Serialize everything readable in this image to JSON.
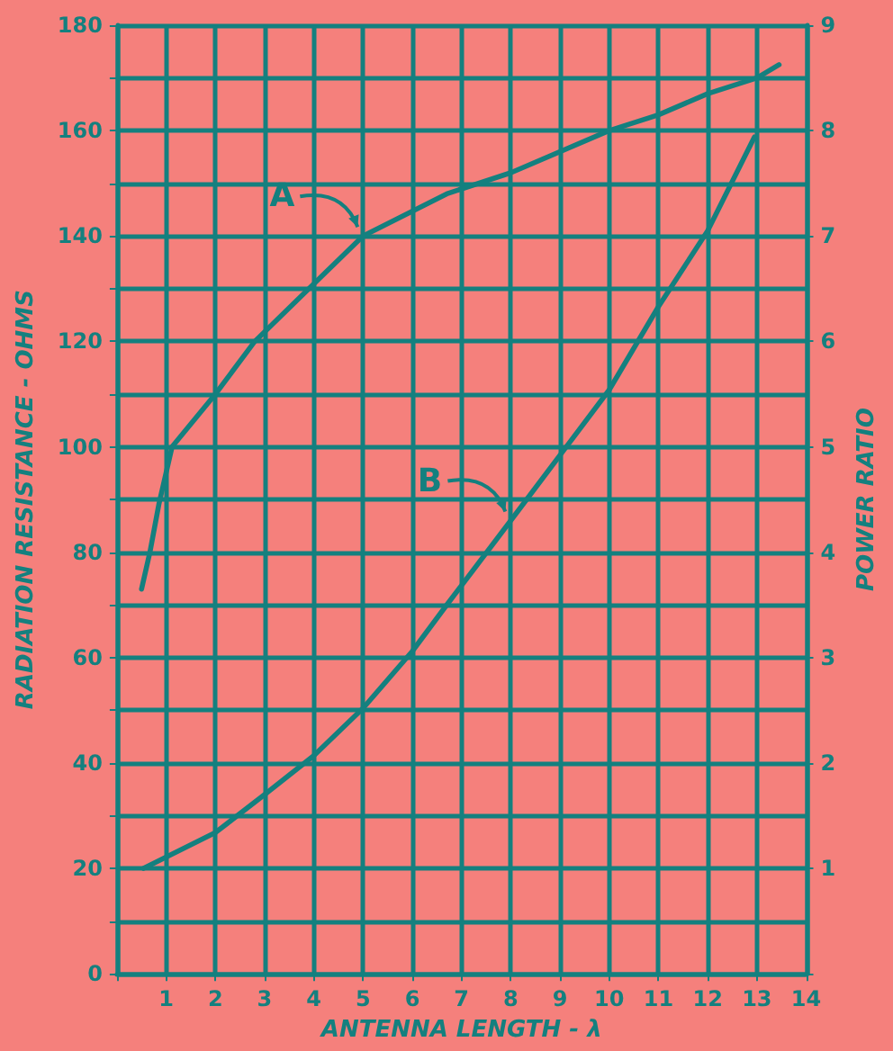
{
  "chart_data": {
    "type": "line",
    "xlabel": "ANTENNA LENGTH - λ",
    "ylabel": "RADIATION RESISTANCE - OHMS",
    "y2label": "POWER RATIO",
    "series": [
      {
        "name": "A",
        "color": "#14807f",
        "x": [
          0.5,
          0.67,
          0.85,
          1.12,
          2,
          2.8,
          3.9,
          5,
          6.7,
          8,
          10,
          11,
          12,
          13,
          13.45
        ],
        "values": [
          73,
          80,
          89,
          100,
          110,
          120,
          130,
          140,
          148,
          152,
          160,
          163,
          167,
          170,
          172.5
        ]
      },
      {
        "name": "B",
        "color": "#14807f",
        "axis": "y2",
        "x": [
          0.54,
          2,
          3,
          4,
          5,
          6,
          6.7,
          8,
          9,
          10,
          11,
          12,
          12.95
        ],
        "values": [
          1.0,
          1.34,
          1.7,
          2.07,
          2.52,
          3.06,
          3.5,
          4.3,
          4.92,
          5.54,
          6.33,
          7.05,
          7.94
        ]
      }
    ],
    "xlim": [
      0,
      14
    ],
    "xticks": [
      {
        "value": 0,
        "label": null
      },
      1,
      2,
      3,
      4,
      5,
      6,
      7,
      8,
      9,
      10,
      11,
      12,
      13,
      14
    ],
    "ylim": [
      0,
      180
    ],
    "yticks": [
      0,
      {
        "value": 10,
        "label": null
      },
      20,
      {
        "value": 30,
        "label": null
      },
      40,
      {
        "value": 50,
        "label": null
      },
      60,
      {
        "value": 70,
        "label": null
      },
      80,
      {
        "value": 90,
        "label": null
      },
      100,
      {
        "value": 110,
        "label": null
      },
      120,
      {
        "value": 130,
        "label": null
      },
      140,
      {
        "value": 150,
        "label": null
      },
      160,
      {
        "value": 170,
        "label": null
      },
      180
    ],
    "y2lim": [
      0,
      9
    ],
    "y2ticks": [
      {
        "value": 0,
        "label": null
      },
      1,
      2,
      3,
      4,
      5,
      6,
      7,
      8,
      9
    ],
    "grid": true,
    "marker": "none",
    "line_style": "solid",
    "legend": "top left"
  }
}
